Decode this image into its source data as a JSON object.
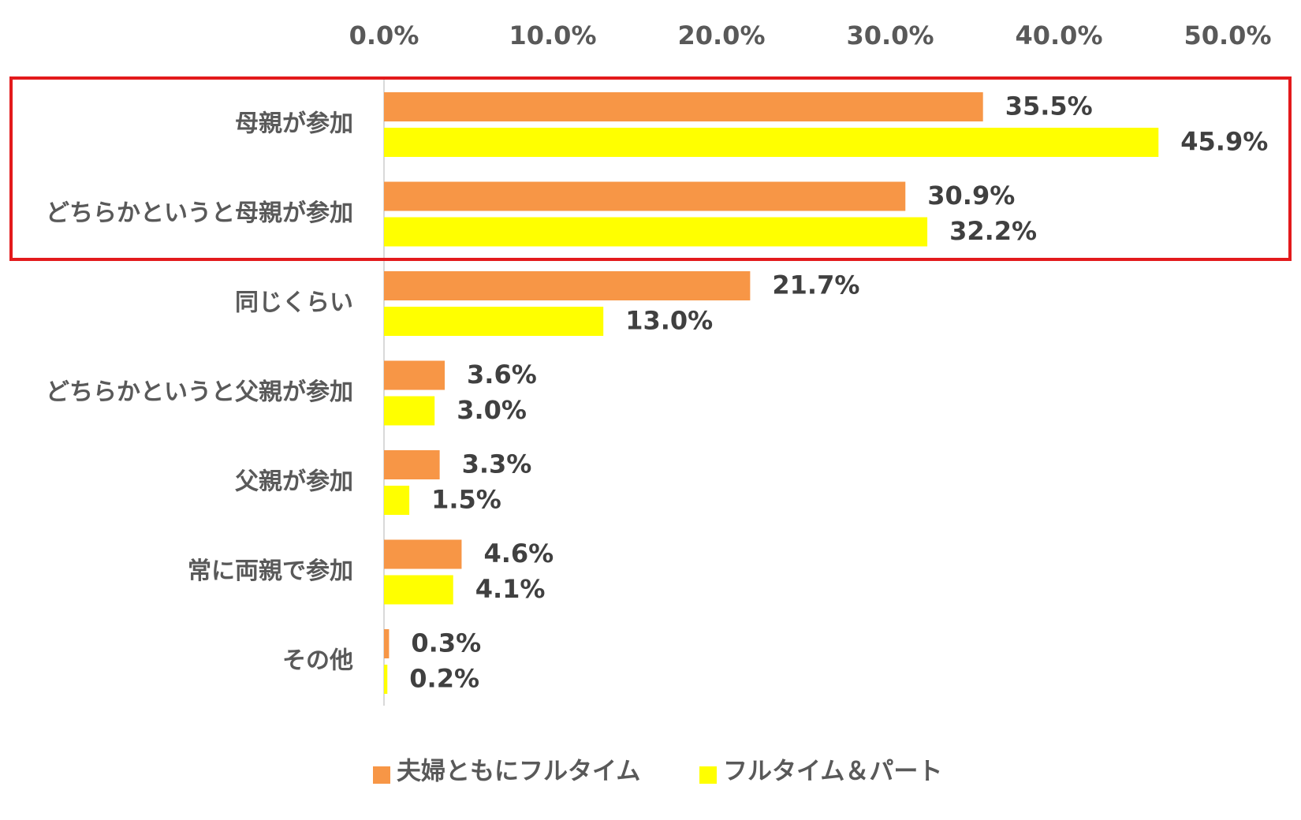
{
  "chart_data": {
    "type": "bar",
    "orientation": "horizontal",
    "categories": [
      "母親が参加",
      "どちらかというと母親が参加",
      "同じくらい",
      "どちらかというと父親が参加",
      "父親が参加",
      "常に両親で参加",
      "その他"
    ],
    "series": [
      {
        "name": "夫婦ともにフルタイム",
        "color": "#F79646",
        "values": [
          35.5,
          30.9,
          21.7,
          3.6,
          3.3,
          4.6,
          0.3
        ]
      },
      {
        "name": "フルタイム＆パート",
        "color": "#FFFF00",
        "values": [
          45.9,
          32.2,
          13.0,
          3.0,
          1.5,
          4.1,
          0.2
        ]
      }
    ],
    "xlim": [
      0,
      50
    ],
    "xticks": [
      "0.0%",
      "10.0%",
      "20.0%",
      "30.0%",
      "40.0%",
      "50.0%"
    ],
    "tick_values": [
      0,
      10,
      20,
      30,
      40,
      50
    ],
    "axis_position": "top",
    "grid": false,
    "legend_position": "bottom",
    "highlight": {
      "categories": [
        "母親が参加",
        "どちらかというと母親が参加"
      ],
      "color": "#E31A1C"
    }
  }
}
